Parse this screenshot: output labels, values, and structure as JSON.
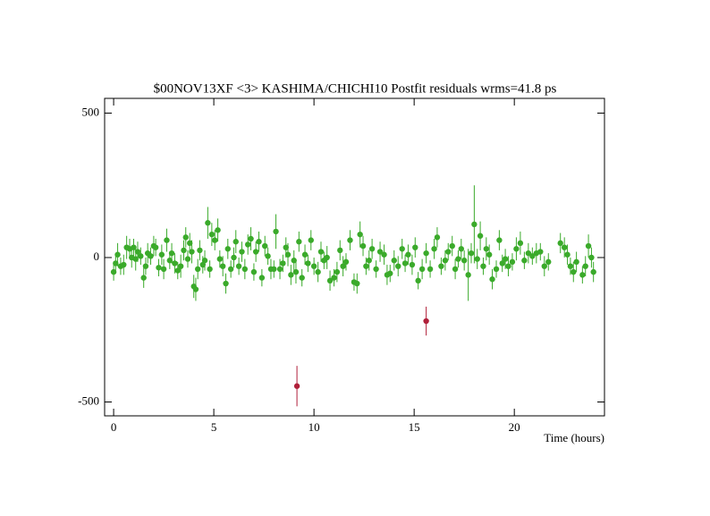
{
  "chart_data": {
    "type": "scatter",
    "title": "$00NOV13XF <3> KASHIMA/CHICHI10 Postfit residuals wrms=41.8  ps",
    "x_label": "Time (hours)",
    "xlim": [
      -0.45,
      24.5
    ],
    "ylim": [
      -548,
      551
    ],
    "xticks": [
      0,
      5,
      10,
      15,
      20
    ],
    "yticks": [
      -500,
      0,
      500
    ],
    "series": [
      {
        "color": "#3aaa2a",
        "x": [
          0.0,
          0.1,
          0.2,
          0.35,
          0.5,
          0.65,
          0.8,
          0.9,
          1.0,
          1.1,
          1.2,
          1.35,
          1.5,
          1.6,
          1.7,
          1.85,
          2.0,
          2.1,
          2.25,
          2.4,
          2.5,
          2.65,
          2.8,
          2.9,
          3.05,
          3.2,
          3.35,
          3.5,
          3.6,
          3.7,
          3.8,
          3.9,
          4.0,
          4.1,
          4.2,
          4.3,
          4.45,
          4.55,
          4.7,
          4.8,
          4.9,
          5.05,
          5.2,
          5.3,
          5.45,
          5.6,
          5.7,
          5.85,
          6.0,
          6.1,
          6.25,
          6.4,
          6.55,
          6.7,
          6.85,
          7.0,
          7.1,
          7.25,
          7.4,
          7.55,
          7.7,
          7.85,
          8.0,
          8.1,
          8.3,
          8.45,
          8.6,
          8.7,
          8.85,
          9.0,
          9.1,
          9.25,
          9.4,
          9.55,
          9.7,
          9.85,
          10.0,
          10.2,
          10.35,
          10.5,
          10.65,
          10.8,
          11.0,
          11.15,
          11.3,
          11.45,
          11.6,
          11.8,
          12.0,
          12.15,
          12.3,
          12.45,
          12.6,
          12.75,
          12.9,
          13.1,
          13.3,
          13.5,
          13.65,
          13.8,
          14.0,
          14.2,
          14.4,
          14.55,
          14.7,
          14.9,
          15.05,
          15.2,
          15.4,
          15.6,
          15.8,
          16.0,
          16.15,
          16.35,
          16.55,
          16.7,
          16.9,
          17.05,
          17.2,
          17.35,
          17.5,
          17.7,
          17.85,
          18.0,
          18.15,
          18.3,
          18.45,
          18.6,
          18.75,
          18.9,
          19.1,
          19.25,
          19.4,
          19.55,
          19.7,
          19.9,
          20.1,
          20.3,
          20.5,
          20.7,
          20.9,
          21.1,
          21.3,
          21.5,
          21.7,
          22.3,
          22.5,
          22.65,
          22.8,
          22.95,
          23.1,
          23.4,
          23.55,
          23.7,
          23.85,
          23.95
        ],
        "values": [
          -50,
          -20,
          10,
          -30,
          -25,
          35,
          30,
          0,
          35,
          -5,
          20,
          5,
          -70,
          -30,
          15,
          5,
          40,
          35,
          -35,
          10,
          -40,
          60,
          -10,
          15,
          -20,
          -45,
          -30,
          25,
          70,
          -5,
          50,
          20,
          -100,
          -110,
          -40,
          25,
          -25,
          -10,
          120,
          -40,
          80,
          60,
          95,
          -5,
          -30,
          -90,
          30,
          -40,
          0,
          55,
          -30,
          20,
          -40,
          45,
          65,
          -50,
          20,
          55,
          -70,
          40,
          5,
          -40,
          -40,
          90,
          -40,
          -20,
          35,
          10,
          -60,
          -10,
          -50,
          55,
          -70,
          10,
          -20,
          60,
          -30,
          -50,
          20,
          -10,
          0,
          -80,
          -70,
          -50,
          25,
          -30,
          -15,
          60,
          -85,
          -90,
          80,
          40,
          -30,
          -10,
          30,
          -40,
          20,
          10,
          -60,
          -55,
          -10,
          -30,
          30,
          -20,
          10,
          -25,
          35,
          -80,
          -40,
          15,
          -40,
          30,
          70,
          -30,
          -10,
          20,
          40,
          -40,
          -5,
          30,
          -10,
          -60,
          15,
          115,
          -5,
          75,
          -30,
          30,
          10,
          -75,
          -40,
          60,
          -20,
          -5,
          -30,
          -15,
          30,
          50,
          -10,
          15,
          5,
          15,
          20,
          -30,
          -15,
          50,
          35,
          10,
          -30,
          -50,
          -15,
          -60,
          -30,
          40,
          0,
          -50
        ],
        "errors": [
          30,
          35,
          40,
          30,
          35,
          40,
          35,
          35,
          30,
          40,
          35,
          30,
          35,
          30,
          35,
          30,
          35,
          30,
          30,
          35,
          35,
          40,
          30,
          35,
          35,
          30,
          40,
          35,
          35,
          30,
          35,
          40,
          40,
          40,
          35,
          35,
          30,
          35,
          55,
          30,
          40,
          35,
          40,
          30,
          35,
          35,
          35,
          30,
          35,
          40,
          30,
          35,
          35,
          35,
          40,
          30,
          35,
          35,
          30,
          35,
          30,
          35,
          30,
          60,
          35,
          30,
          35,
          40,
          35,
          35,
          40,
          35,
          30,
          35,
          30,
          35,
          30,
          35,
          35,
          30,
          40,
          35,
          30,
          35,
          35,
          35,
          30,
          35,
          30,
          35,
          45,
          35,
          30,
          35,
          35,
          30,
          35,
          35,
          35,
          30,
          35,
          35,
          35,
          30,
          35,
          35,
          35,
          30,
          35,
          35,
          30,
          35,
          35,
          30,
          35,
          30,
          35,
          35,
          30,
          35,
          35,
          90,
          35,
          135,
          35,
          50,
          30,
          40,
          35,
          35,
          30,
          35,
          30,
          35,
          35,
          30,
          40,
          40,
          30,
          35,
          30,
          35,
          30,
          35,
          30,
          35,
          35,
          35,
          30,
          35,
          35,
          30,
          35,
          40,
          35,
          35
        ]
      },
      {
        "color": "#b0203a",
        "x": [
          9.15,
          15.6
        ],
        "values": [
          -445,
          -220
        ],
        "errors": [
          70,
          50
        ]
      }
    ]
  }
}
